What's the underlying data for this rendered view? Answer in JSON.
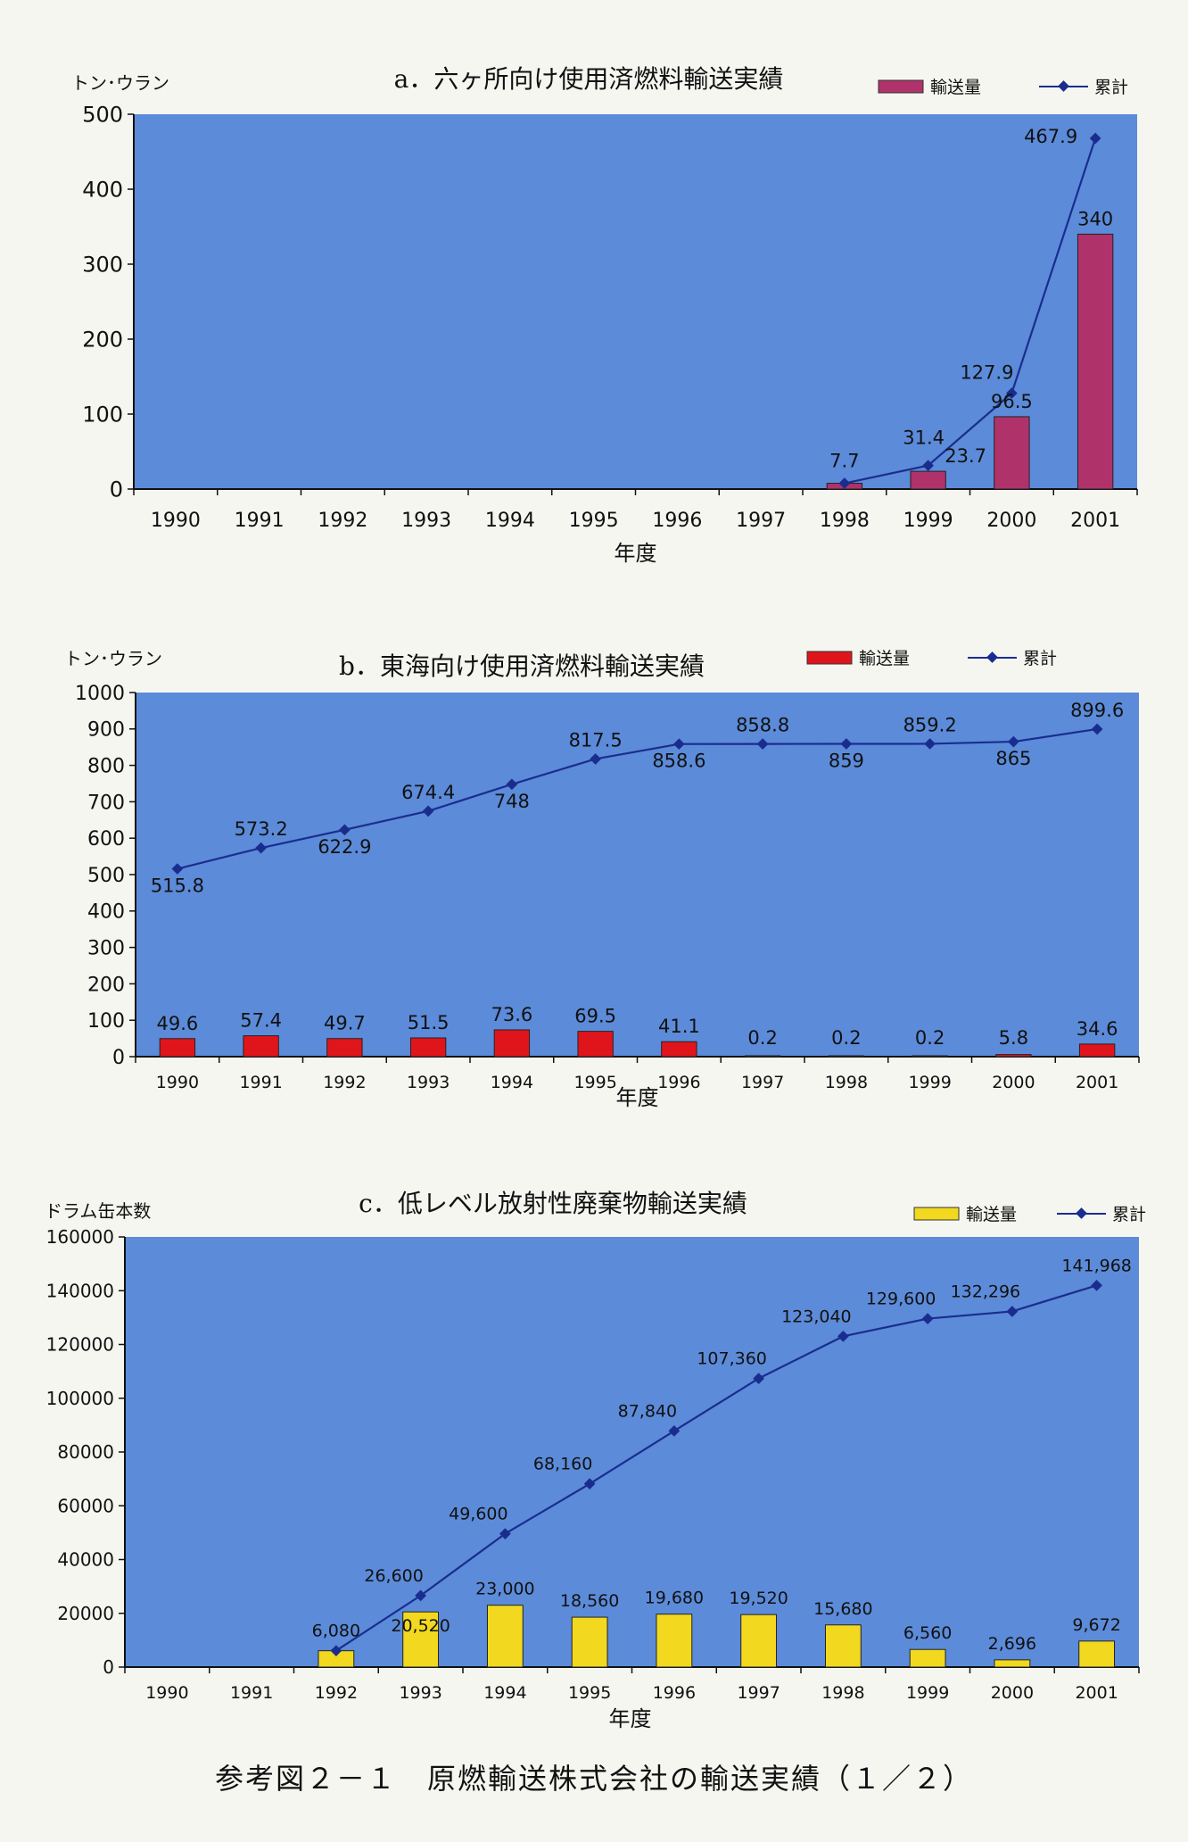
{
  "caption": "参考図２－１　原燃輸送株式会社の輸送実績（１／２）",
  "colors": {
    "plot_bg": "#5c8bd9",
    "line": "#1a2d8f",
    "bar_a": "#b0326b",
    "bar_b": "#e0151b",
    "bar_c": "#f2d81f"
  },
  "chart_data": [
    {
      "type": "bar+line",
      "title": "a．六ヶ所向け使用済燃料輸送実績",
      "ylabel": "トン･ウラン",
      "xlabel": "年度",
      "legend": {
        "bar": "輸送量",
        "line": "累計"
      },
      "ylim": [
        0,
        500
      ],
      "yticks": [
        0,
        100,
        200,
        300,
        400,
        500
      ],
      "categories": [
        "1990",
        "1991",
        "1992",
        "1993",
        "1994",
        "1995",
        "1996",
        "1997",
        "1998",
        "1999",
        "2000",
        "2001"
      ],
      "series": [
        {
          "name": "輸送量",
          "type": "bar",
          "values": [
            null,
            null,
            null,
            null,
            null,
            null,
            null,
            null,
            7.7,
            23.7,
            96.5,
            340
          ],
          "labels": [
            "",
            "",
            "",
            "",
            "",
            "",
            "",
            "",
            "",
            "23.7",
            "96.5",
            "340"
          ]
        },
        {
          "name": "累計",
          "type": "line",
          "values": [
            null,
            null,
            null,
            null,
            null,
            null,
            null,
            null,
            7.7,
            31.4,
            127.9,
            467.9
          ],
          "labels": [
            "",
            "",
            "",
            "",
            "",
            "",
            "",
            "",
            "7.7",
            "31.4",
            "127.9",
            "467.9"
          ]
        }
      ]
    },
    {
      "type": "bar+line",
      "title": "b．東海向け使用済燃料輸送実績",
      "ylabel": "トン･ウラン",
      "xlabel": "年度",
      "legend": {
        "bar": "輸送量",
        "line": "累計"
      },
      "ylim": [
        0,
        1000
      ],
      "yticks": [
        0,
        100,
        200,
        300,
        400,
        500,
        600,
        700,
        800,
        900,
        1000
      ],
      "categories": [
        "1990",
        "1991",
        "1992",
        "1993",
        "1994",
        "1995",
        "1996",
        "1997",
        "1998",
        "1999",
        "2000",
        "2001"
      ],
      "series": [
        {
          "name": "輸送量",
          "type": "bar",
          "values": [
            49.6,
            57.4,
            49.7,
            51.5,
            73.6,
            69.5,
            41.1,
            0.2,
            0.2,
            0.2,
            5.8,
            34.6
          ],
          "labels": [
            "49.6",
            "57.4",
            "49.7",
            "51.5",
            "73.6",
            "69.5",
            "41.1",
            "0.2",
            "0.2",
            "0.2",
            "5.8",
            "34.6"
          ]
        },
        {
          "name": "累計",
          "type": "line",
          "values": [
            515.8,
            573.2,
            622.9,
            674.4,
            748,
            817.5,
            858.6,
            858.8,
            859,
            859.2,
            865,
            899.6
          ],
          "labels": [
            "515.8",
            "573.2",
            "622.9",
            "674.4",
            "748",
            "817.5",
            "858.6",
            "858.8",
            "859",
            "859.2",
            "865",
            "899.6"
          ]
        }
      ]
    },
    {
      "type": "bar+line",
      "title": "c．低レベル放射性廃棄物輸送実績",
      "ylabel": "ドラム缶本数",
      "xlabel": "年度",
      "legend": {
        "bar": "輸送量",
        "line": "累計"
      },
      "ylim": [
        0,
        160000
      ],
      "yticks": [
        0,
        20000,
        40000,
        60000,
        80000,
        100000,
        120000,
        140000,
        160000
      ],
      "categories": [
        "1990",
        "1991",
        "1992",
        "1993",
        "1994",
        "1995",
        "1996",
        "1997",
        "1998",
        "1999",
        "2000",
        "2001"
      ],
      "series": [
        {
          "name": "輸送量",
          "type": "bar",
          "values": [
            null,
            null,
            6080,
            20520,
            23000,
            18560,
            19680,
            19520,
            15680,
            6560,
            2696,
            9672
          ],
          "labels": [
            "",
            "",
            "6,080",
            "20,520",
            "23,000",
            "18,560",
            "19,680",
            "19,520",
            "15,680",
            "6,560",
            "2,696",
            "9,672"
          ]
        },
        {
          "name": "累計",
          "type": "line",
          "values": [
            null,
            null,
            6080,
            26600,
            49600,
            68160,
            87840,
            107360,
            123040,
            129600,
            132296,
            141968
          ],
          "labels": [
            "",
            "",
            "",
            "26,600",
            "49,600",
            "68,160",
            "87,840",
            "107,360",
            "123,040",
            "129,600",
            "132,296",
            "141,968"
          ]
        }
      ]
    }
  ]
}
